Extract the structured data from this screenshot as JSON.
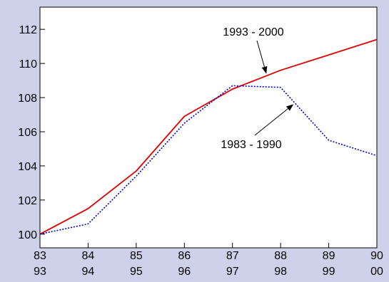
{
  "chart_data": {
    "type": "line",
    "title": "",
    "xlabel": "",
    "ylabel": "",
    "ylim": [
      99.2,
      113.3
    ],
    "xlim": [
      0,
      7
    ],
    "yticks": [
      100,
      102,
      104,
      106,
      108,
      110,
      112
    ],
    "x_tick_labels": [
      [
        "83",
        "93"
      ],
      [
        "84",
        "94"
      ],
      [
        "85",
        "95"
      ],
      [
        "86",
        "96"
      ],
      [
        "87",
        "97"
      ],
      [
        "88",
        "98"
      ],
      [
        "89",
        "99"
      ],
      [
        "90",
        "00"
      ]
    ],
    "series": [
      {
        "name": "1993 - 2000",
        "color": "#e00000",
        "style": "solid",
        "values": [
          100.0,
          101.5,
          103.7,
          106.9,
          108.5,
          109.6,
          110.5,
          111.4
        ]
      },
      {
        "name": "1983 - 1990",
        "color": "#0000cc",
        "style": "dotted",
        "values": [
          100.0,
          100.6,
          103.4,
          106.5,
          108.7,
          108.6,
          105.5,
          104.6
        ]
      }
    ],
    "grid": false,
    "background": "#ffffff",
    "frame_color": "#cfd0ea"
  }
}
